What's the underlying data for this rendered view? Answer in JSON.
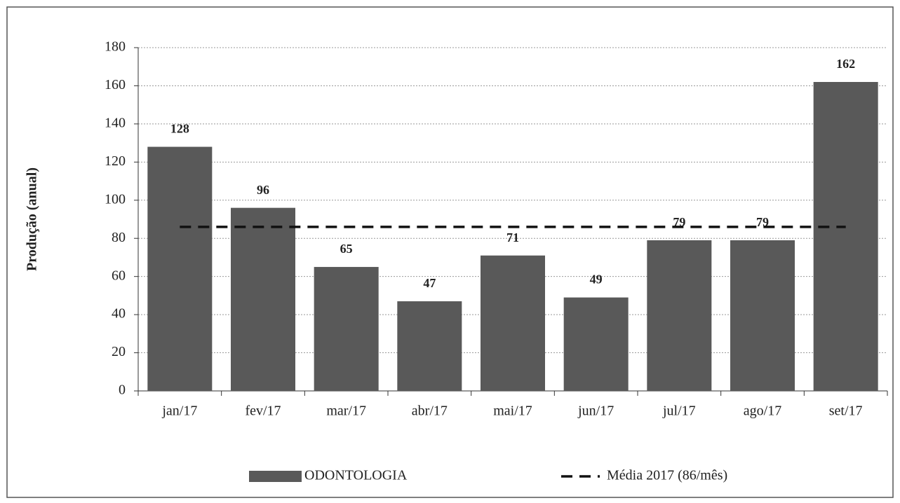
{
  "chart_data": {
    "type": "bar",
    "y_label": "Produção (anual)",
    "categories": [
      "jan/17",
      "fev/17",
      "mar/17",
      "abr/17",
      "mai/17",
      "jun/17",
      "jul/17",
      "ago/17",
      "set/17"
    ],
    "series": [
      {
        "name": "ODONTOLOGIA",
        "type": "bar",
        "color": "#595959",
        "values": [
          128,
          96,
          65,
          47,
          71,
          49,
          79,
          79,
          162
        ]
      },
      {
        "name": "Média 2017 (86/mês)",
        "type": "line",
        "color": "#111111",
        "dashed": true,
        "values": [
          86,
          86,
          86,
          86,
          86,
          86,
          86,
          86,
          86
        ]
      }
    ],
    "ylim": [
      0,
      180
    ],
    "yticks": [
      0,
      20,
      40,
      60,
      80,
      100,
      120,
      140,
      160,
      180
    ],
    "grid": true,
    "legend": "bottom"
  }
}
